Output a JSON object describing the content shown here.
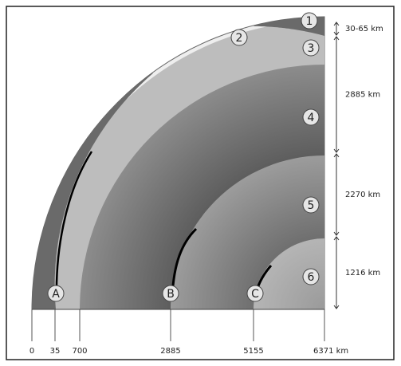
{
  "layer_markers": [
    "1",
    "2",
    "3",
    "4",
    "5",
    "6"
  ],
  "ray_markers": [
    "A",
    "B",
    "C"
  ],
  "thickness_labels": [
    "30-65 km",
    "2885 km",
    "2270 km",
    "1216 km"
  ],
  "depth_labels": [
    "0",
    "35",
    "700",
    "2885",
    "5155",
    "6371 km"
  ]
}
